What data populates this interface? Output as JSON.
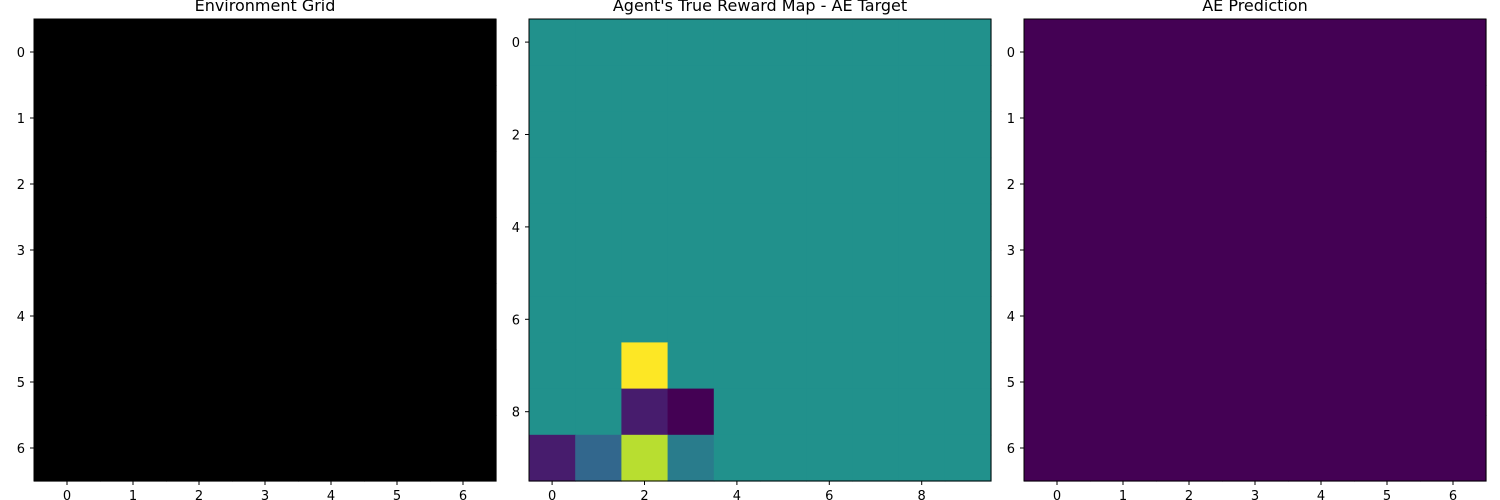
{
  "chart_data": [
    {
      "type": "heatmap",
      "title": "Environment Grid",
      "rows": 7,
      "cols": 7,
      "xticks": [
        0,
        1,
        2,
        3,
        4,
        5,
        6
      ],
      "yticks": [
        0,
        1,
        2,
        3,
        4,
        5,
        6
      ],
      "colormap": "gray",
      "vmin": 0,
      "vmax": 1,
      "values": [
        [
          0,
          0,
          0,
          0,
          0,
          0,
          0
        ],
        [
          0,
          0,
          0,
          0,
          0,
          0,
          0
        ],
        [
          0,
          0,
          0,
          0,
          0,
          0,
          0
        ],
        [
          0,
          0,
          0,
          0,
          0,
          0,
          0
        ],
        [
          0,
          0,
          0,
          0,
          0,
          0,
          0
        ],
        [
          0,
          0,
          0,
          0,
          0,
          0,
          0
        ],
        [
          0,
          0,
          0,
          0,
          0,
          0,
          0
        ]
      ]
    },
    {
      "type": "heatmap",
      "title": "Agent's True Reward Map - AE Target",
      "rows": 10,
      "cols": 10,
      "xticks": [
        0,
        2,
        4,
        6,
        8
      ],
      "yticks": [
        0,
        2,
        4,
        6,
        8
      ],
      "colormap": "viridis",
      "vmin": -1,
      "vmax": 1,
      "values": [
        [
          0,
          0,
          0,
          0,
          0,
          0,
          0,
          0,
          0,
          0
        ],
        [
          0,
          0,
          0,
          0,
          0,
          0,
          0,
          0,
          0,
          0
        ],
        [
          0,
          0,
          0,
          0,
          0,
          0,
          0,
          0,
          0,
          0
        ],
        [
          0,
          0,
          0,
          0,
          0,
          0,
          0,
          0,
          0,
          0
        ],
        [
          0,
          0,
          0,
          0,
          0,
          0,
          0,
          0,
          0,
          0
        ],
        [
          0,
          0,
          0,
          0,
          0,
          0,
          0,
          0,
          0,
          0
        ],
        [
          0,
          0,
          0,
          0,
          0,
          0,
          0,
          0,
          0,
          0
        ],
        [
          0,
          0,
          1,
          0,
          0,
          0,
          0,
          0,
          0,
          0
        ],
        [
          0,
          0,
          -0.8,
          -1,
          0,
          0,
          0,
          0,
          0,
          0
        ],
        [
          -0.8,
          -0.2,
          0.8,
          -0.1,
          0,
          0,
          0,
          0,
          0,
          0
        ]
      ]
    },
    {
      "type": "heatmap",
      "title": "AE Prediction",
      "rows": 7,
      "cols": 7,
      "xticks": [
        0,
        1,
        2,
        3,
        4,
        5,
        6
      ],
      "yticks": [
        0,
        1,
        2,
        3,
        4,
        5,
        6
      ],
      "colormap": "viridis",
      "vmin": 0,
      "vmax": 1,
      "values": [
        [
          0,
          0,
          0,
          0,
          0,
          0,
          0
        ],
        [
          0,
          0,
          0,
          0,
          0,
          0,
          0
        ],
        [
          0,
          0,
          0,
          0,
          0,
          0,
          0
        ],
        [
          0,
          0,
          0,
          0,
          0,
          0,
          0
        ],
        [
          0,
          0,
          0,
          0,
          0,
          0,
          0
        ],
        [
          0,
          0,
          0,
          0,
          0,
          0,
          0
        ],
        [
          0,
          0,
          0,
          0,
          0,
          0,
          0
        ]
      ]
    }
  ]
}
